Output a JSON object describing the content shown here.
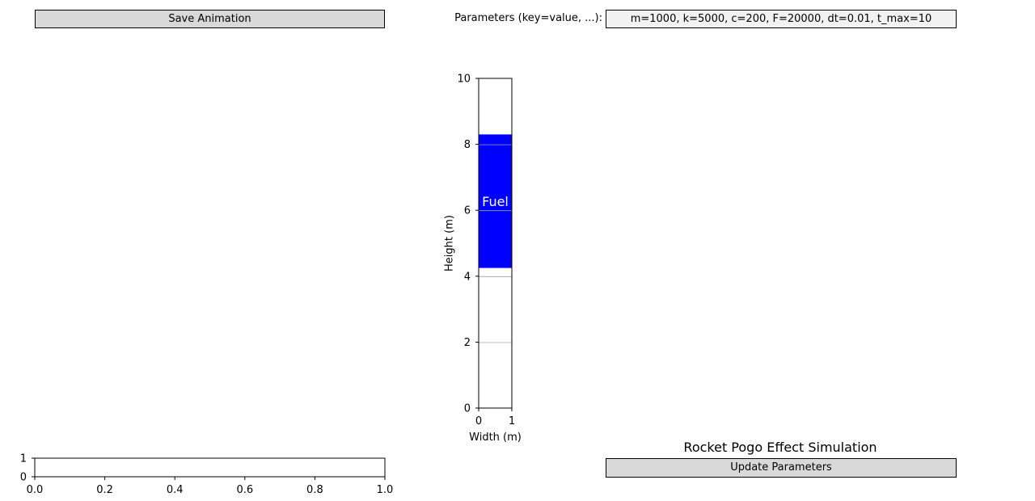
{
  "toolbar": {
    "save_label": "Save Animation",
    "update_label": "Update Parameters"
  },
  "parameters": {
    "label": "Parameters (key=value, ...):",
    "value": "m=1000, k=5000, c=200, F=20000, dt=0.01, t_max=10"
  },
  "simulation_title": "Rocket Pogo Effect Simulation",
  "chart_data": [
    {
      "type": "bar",
      "xlabel": "Width (m)",
      "ylabel": "Height (m)",
      "xlim": [
        0,
        1
      ],
      "ylim": [
        0,
        10
      ],
      "x_ticks": [
        "0",
        "1"
      ],
      "y_ticks": [
        "0",
        "2",
        "4",
        "6",
        "8",
        "10"
      ],
      "grid": "horizontal",
      "fuel": {
        "label": "Fuel",
        "bottom": 4.25,
        "top": 8.3,
        "color": "#0000ff",
        "label_color": "#ffffff"
      }
    },
    {
      "type": "table",
      "xlim": [
        0,
        1
      ],
      "ylim": [
        0,
        1
      ],
      "x_ticks": [
        "0.0",
        "0.2",
        "0.4",
        "0.6",
        "0.8",
        "1.0"
      ],
      "y_ticks": [
        "0",
        "1"
      ]
    }
  ]
}
